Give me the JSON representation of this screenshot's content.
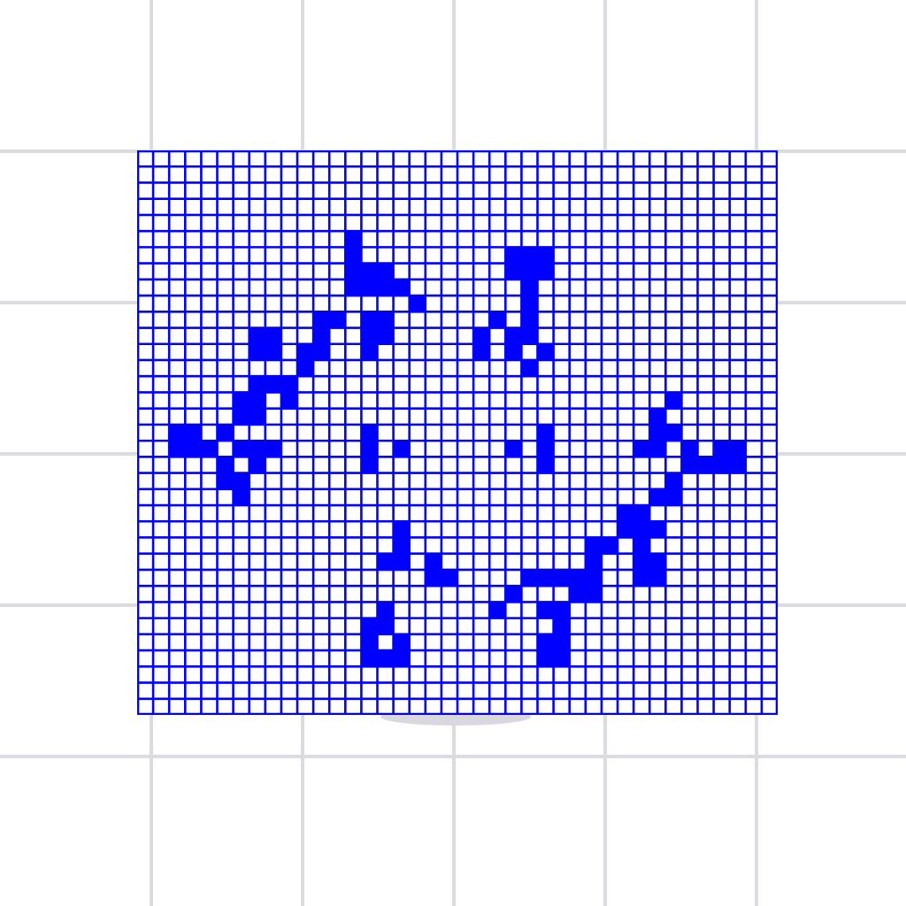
{
  "game": {
    "cols": 40,
    "rows": 35,
    "background_grid_color": "#dcdbe0",
    "board_background": "#ffffff",
    "line_color": "#0000ff",
    "live_cell_color": "#0000ff",
    "live_cells": [
      [
        13,
        5
      ],
      [
        13,
        6
      ],
      [
        13,
        7
      ],
      [
        14,
        7
      ],
      [
        15,
        7
      ],
      [
        13,
        8
      ],
      [
        14,
        8
      ],
      [
        15,
        8
      ],
      [
        16,
        8
      ],
      [
        17,
        9
      ],
      [
        11,
        10
      ],
      [
        12,
        10
      ],
      [
        11,
        11
      ],
      [
        10,
        12
      ],
      [
        11,
        12
      ],
      [
        10,
        13
      ],
      [
        14,
        10
      ],
      [
        15,
        10
      ],
      [
        14,
        11
      ],
      [
        15,
        11
      ],
      [
        14,
        12
      ],
      [
        7,
        11
      ],
      [
        8,
        11
      ],
      [
        7,
        12
      ],
      [
        8,
        12
      ],
      [
        7,
        14
      ],
      [
        8,
        14
      ],
      [
        9,
        14
      ],
      [
        9,
        15
      ],
      [
        7,
        15
      ],
      [
        6,
        15
      ],
      [
        6,
        16
      ],
      [
        7,
        16
      ],
      [
        2,
        17
      ],
      [
        3,
        17
      ],
      [
        5,
        17
      ],
      [
        6,
        18
      ],
      [
        3,
        18
      ],
      [
        4,
        18
      ],
      [
        2,
        18
      ],
      [
        5,
        19
      ],
      [
        5,
        20
      ],
      [
        7,
        18
      ],
      [
        8,
        18
      ],
      [
        7,
        19
      ],
      [
        6,
        20
      ],
      [
        6,
        21
      ],
      [
        14,
        17
      ],
      [
        14,
        18
      ],
      [
        14,
        19
      ],
      [
        16,
        18
      ],
      [
        23,
        6
      ],
      [
        24,
        6
      ],
      [
        25,
        6
      ],
      [
        23,
        7
      ],
      [
        24,
        7
      ],
      [
        25,
        7
      ],
      [
        24,
        8
      ],
      [
        24,
        9
      ],
      [
        24,
        10
      ],
      [
        25,
        12
      ],
      [
        23,
        11
      ],
      [
        24,
        11
      ],
      [
        23,
        12
      ],
      [
        24,
        13
      ],
      [
        22,
        10
      ],
      [
        21,
        11
      ],
      [
        21,
        12
      ],
      [
        25,
        17
      ],
      [
        25,
        18
      ],
      [
        25,
        19
      ],
      [
        23,
        18
      ],
      [
        33,
        15
      ],
      [
        32,
        16
      ],
      [
        32,
        17
      ],
      [
        31,
        18
      ],
      [
        32,
        18
      ],
      [
        33,
        17
      ],
      [
        34,
        18
      ],
      [
        34,
        19
      ],
      [
        35,
        19
      ],
      [
        36,
        19
      ],
      [
        36,
        18
      ],
      [
        37,
        18
      ],
      [
        37,
        19
      ],
      [
        33,
        20
      ],
      [
        33,
        21
      ],
      [
        32,
        21
      ],
      [
        31,
        22
      ],
      [
        30,
        22
      ],
      [
        30,
        23
      ],
      [
        31,
        23
      ],
      [
        32,
        23
      ],
      [
        29,
        24
      ],
      [
        28,
        25
      ],
      [
        28,
        24
      ],
      [
        28,
        26
      ],
      [
        27,
        26
      ],
      [
        26,
        26
      ],
      [
        25,
        26
      ],
      [
        24,
        26
      ],
      [
        23,
        27
      ],
      [
        22,
        28
      ],
      [
        27,
        27
      ],
      [
        28,
        27
      ],
      [
        31,
        25
      ],
      [
        32,
        25
      ],
      [
        31,
        26
      ],
      [
        32,
        26
      ],
      [
        31,
        24
      ],
      [
        16,
        23
      ],
      [
        16,
        24
      ],
      [
        16,
        25
      ],
      [
        15,
        25
      ],
      [
        18,
        25
      ],
      [
        19,
        26
      ],
      [
        18,
        26
      ],
      [
        15,
        28
      ],
      [
        14,
        29
      ],
      [
        15,
        29
      ],
      [
        14,
        30
      ],
      [
        16,
        30
      ],
      [
        15,
        31
      ],
      [
        14,
        31
      ],
      [
        16,
        31
      ],
      [
        25,
        28
      ],
      [
        26,
        28
      ],
      [
        26,
        29
      ],
      [
        25,
        30
      ],
      [
        26,
        30
      ],
      [
        25,
        31
      ],
      [
        26,
        31
      ]
    ]
  }
}
